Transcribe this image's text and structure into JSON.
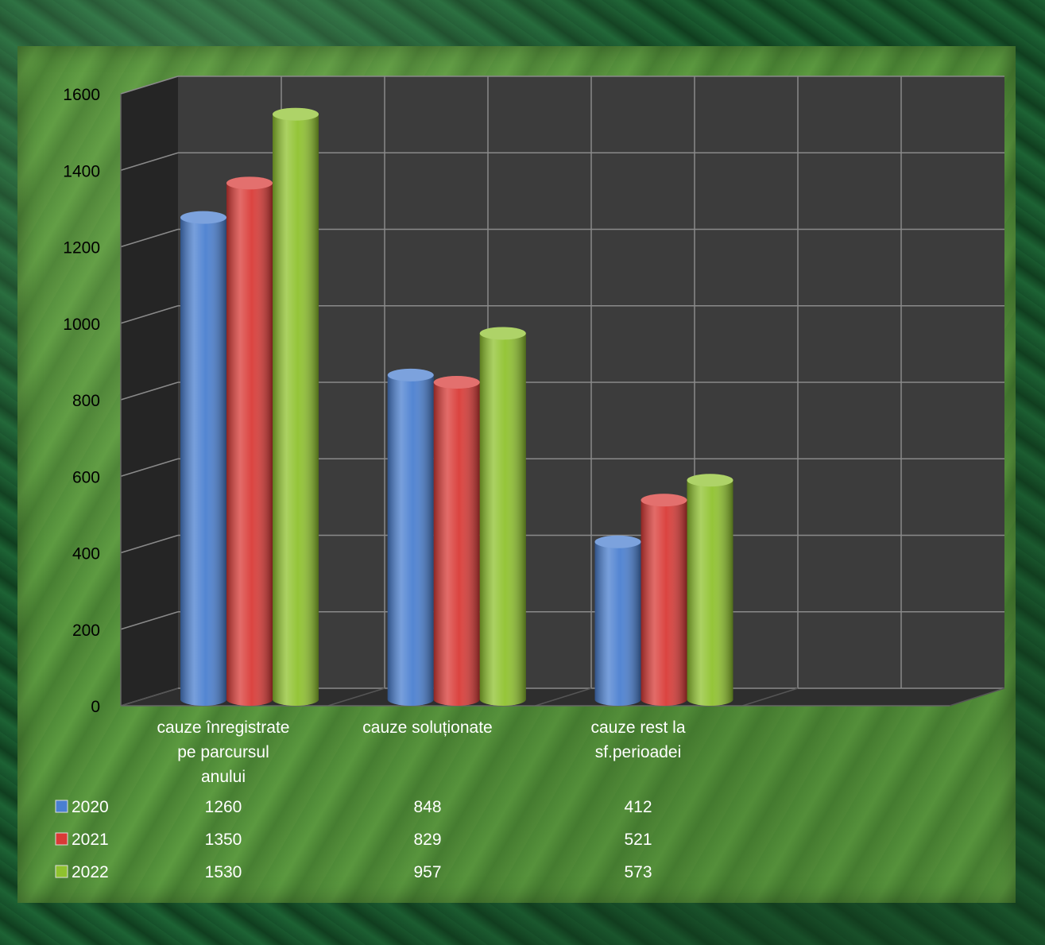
{
  "chart_data": {
    "type": "bar",
    "categories": [
      [
        "cauze înregistrate",
        "pe parcursul",
        "anului"
      ],
      [
        "cauze soluționate"
      ],
      [
        "cauze rest la",
        "sf.perioadei"
      ]
    ],
    "series": [
      {
        "name": "2020",
        "values": [
          1260,
          848,
          412
        ],
        "color": "#4a7fd0"
      },
      {
        "name": "2021",
        "values": [
          1350,
          829,
          521
        ],
        "color": "#d93a36"
      },
      {
        "name": "2022",
        "values": [
          1530,
          957,
          573
        ],
        "color": "#8fc22e"
      }
    ],
    "ylim": [
      0,
      1600
    ],
    "yticks": [
      "0",
      "200",
      "400",
      "600",
      "800",
      "1000",
      "1200",
      "1400",
      "1600"
    ],
    "grid": true,
    "legend": "data table below chart",
    "colors": {
      "floor": "#2e2e2e",
      "back_wall": "#3c3c3c",
      "side_wall": "#252525",
      "grid": "#8a8a8a"
    }
  }
}
